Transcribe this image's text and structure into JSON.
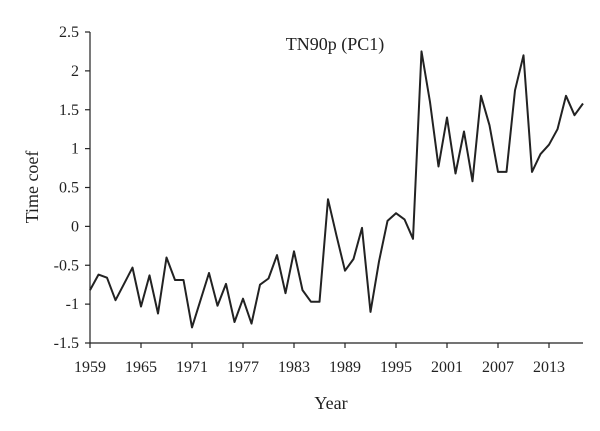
{
  "chart_data": {
    "type": "line",
    "title": "TN90p (PC1)",
    "xlabel": "Year",
    "ylabel": "Time coef",
    "xlim": [
      1959,
      2017
    ],
    "ylim": [
      -1.5,
      2.5
    ],
    "x_ticks": [
      1959,
      1965,
      1971,
      1977,
      1983,
      1989,
      1995,
      2001,
      2007,
      2013
    ],
    "y_ticks": [
      -1.5,
      -1,
      -0.5,
      0,
      0.5,
      1,
      1.5,
      2,
      2.5
    ],
    "y_tick_labels": [
      "-1.5",
      "-1",
      "-0.5",
      "0",
      "0.5",
      "1",
      "1.5",
      "2",
      "2.5"
    ],
    "line_color": "#222222",
    "grid": false,
    "series": [
      {
        "x": [
          1959,
          1960,
          1961,
          1962,
          1963,
          1964,
          1965,
          1966,
          1967,
          1968,
          1969,
          1970,
          1971,
          1972,
          1973,
          1974,
          1975,
          1976,
          1977,
          1978,
          1979,
          1980,
          1981,
          1982,
          1983,
          1984,
          1985,
          1986,
          1987,
          1988,
          1989,
          1990,
          1991,
          1992,
          1993,
          1994,
          1995,
          1996,
          1997,
          1998,
          1999,
          2000,
          2001,
          2002,
          2003,
          2004,
          2005,
          2006,
          2007,
          2008,
          2009,
          2010,
          2011,
          2012,
          2013,
          2014,
          2015,
          2016,
          2017
        ],
        "values": [
          -0.82,
          -0.62,
          -0.66,
          -0.95,
          -0.74,
          -0.53,
          -1.03,
          -0.63,
          -1.12,
          -0.4,
          -0.69,
          -0.69,
          -1.3,
          -0.95,
          -0.6,
          -1.02,
          -0.74,
          -1.23,
          -0.93,
          -1.25,
          -0.75,
          -0.67,
          -0.37,
          -0.86,
          -0.32,
          -0.82,
          -0.97,
          -0.97,
          0.35,
          -0.12,
          -0.57,
          -0.42,
          -0.02,
          -1.1,
          -0.45,
          0.07,
          0.17,
          0.09,
          -0.16,
          2.25,
          1.6,
          0.77,
          1.4,
          0.68,
          1.22,
          0.58,
          1.68,
          1.3,
          0.7,
          0.7,
          1.75,
          2.2,
          0.7,
          0.93,
          1.05,
          1.25,
          1.68,
          1.43,
          1.58
        ]
      }
    ]
  }
}
